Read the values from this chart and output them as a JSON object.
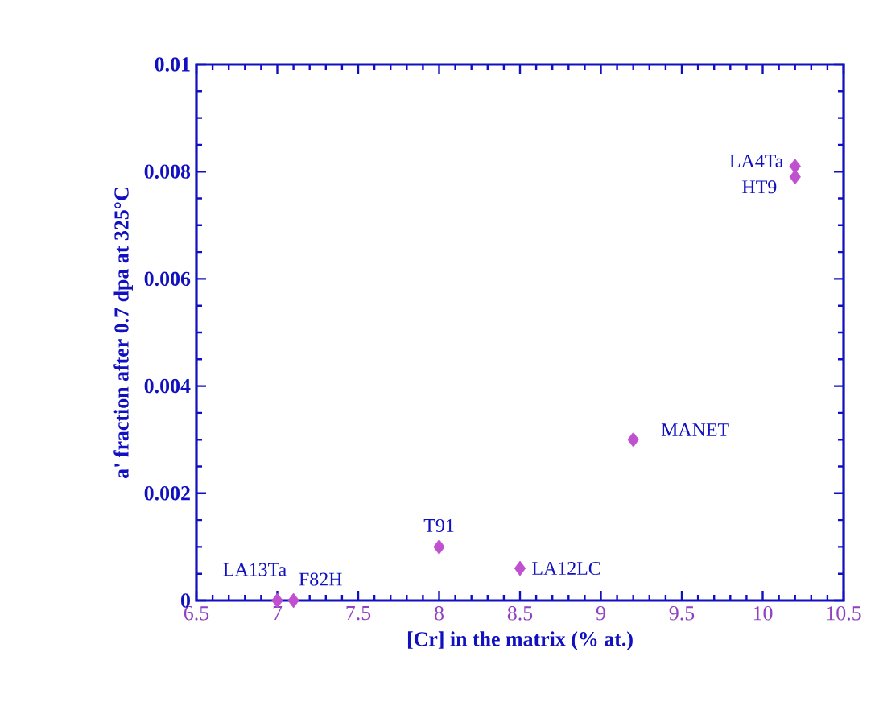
{
  "chart_data": {
    "type": "scatter",
    "xlabel": "[Cr] in the matrix (% at.)",
    "ylabel": "a' fraction after 0.7 dpa at 325°C",
    "x": [
      7.0,
      7.1,
      8.0,
      8.5,
      9.2,
      10.2,
      10.2
    ],
    "values": [
      0,
      0,
      0.001,
      0.0006,
      0.003,
      0.0081,
      0.0079
    ],
    "color": "#c050d0",
    "marker": "diamond",
    "grid": false,
    "xlim": [
      6.5,
      10.5
    ],
    "xticks": [
      6.5,
      7,
      7.5,
      8,
      8.5,
      9,
      9.5,
      10,
      10.5
    ],
    "ylim": [
      0,
      0.01
    ],
    "yticks": [
      0,
      0.002,
      0.004,
      0.006,
      0.008,
      0.01
    ],
    "annotations": [
      {
        "text": "LA13Ta",
        "x": 7.0,
        "y": 0
      },
      {
        "text": "F82H",
        "x": 7.1,
        "y": 0
      },
      {
        "text": "T91",
        "x": 8.0,
        "y": 0.001
      },
      {
        "text": "LA12LC",
        "x": 8.5,
        "y": 0.0006
      },
      {
        "text": "MANET",
        "x": 9.2,
        "y": 0.003
      },
      {
        "text": "LA4Ta",
        "x": 10.2,
        "y": 0.0081
      },
      {
        "text": "HT9",
        "x": 10.2,
        "y": 0.0079
      }
    ]
  }
}
